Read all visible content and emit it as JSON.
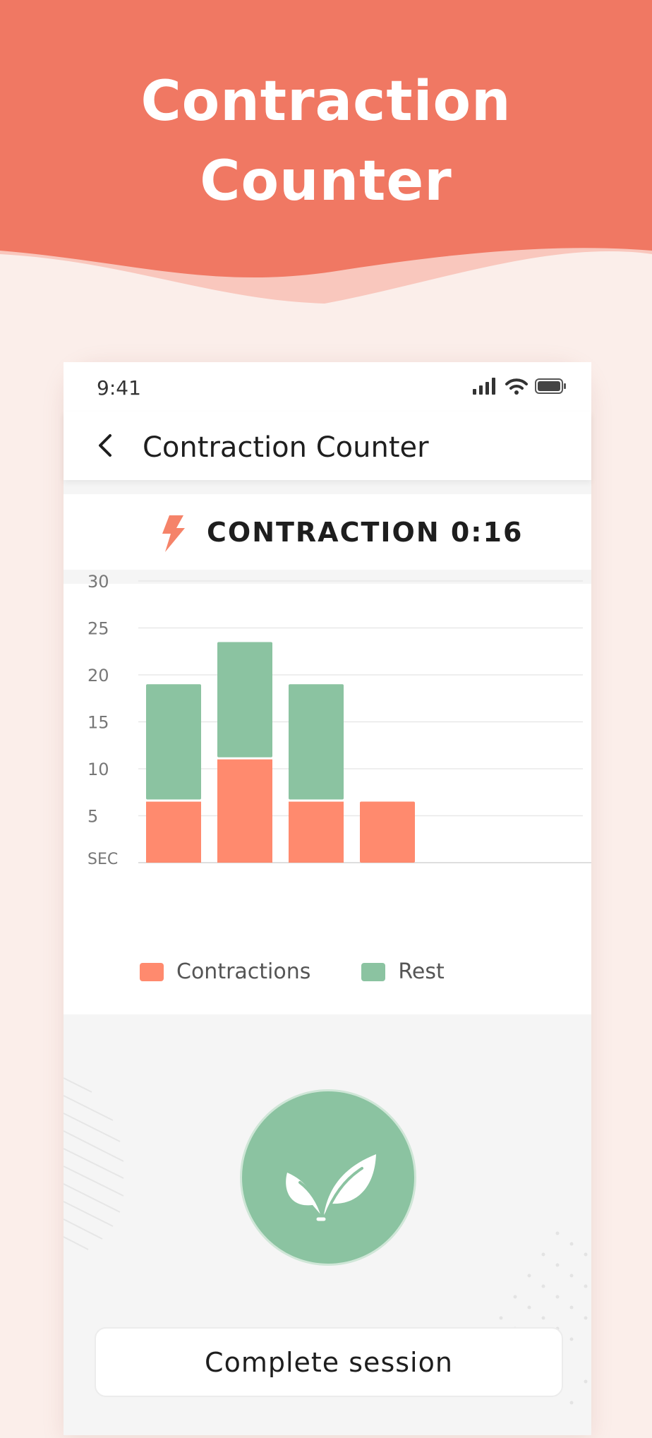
{
  "banner": {
    "title_line1": "Contraction",
    "title_line2": "Counter",
    "color": "#f07863"
  },
  "status_bar": {
    "time": "9:41",
    "icons": [
      "signal-icon",
      "wifi-icon",
      "battery-icon"
    ]
  },
  "nav": {
    "back_icon": "chevron-left-icon",
    "title": "Contraction Counter"
  },
  "timer": {
    "icon": "lightning-icon",
    "text": "CONTRACTION 0:16",
    "accent": "#f58369"
  },
  "chart_data": {
    "type": "bar",
    "stacked": true,
    "ylabel": "SEC",
    "ylim": [
      0,
      30
    ],
    "yticks": [
      5,
      10,
      15,
      20,
      25,
      30
    ],
    "grid": true,
    "legend_placement": "bottom",
    "series": [
      {
        "name": "Contractions",
        "values": [
          6.5,
          11,
          6.5,
          6.5
        ],
        "color": "#ff8a6e"
      },
      {
        "name": "Rest",
        "values": [
          12.5,
          12.5,
          12.5,
          0
        ],
        "color": "#8bc3a1"
      }
    ]
  },
  "legend": {
    "contractions_label": "Contractions",
    "rest_label": "Rest"
  },
  "center_icon": "leaf-icon",
  "actions": {
    "complete_label": "Complete session"
  }
}
